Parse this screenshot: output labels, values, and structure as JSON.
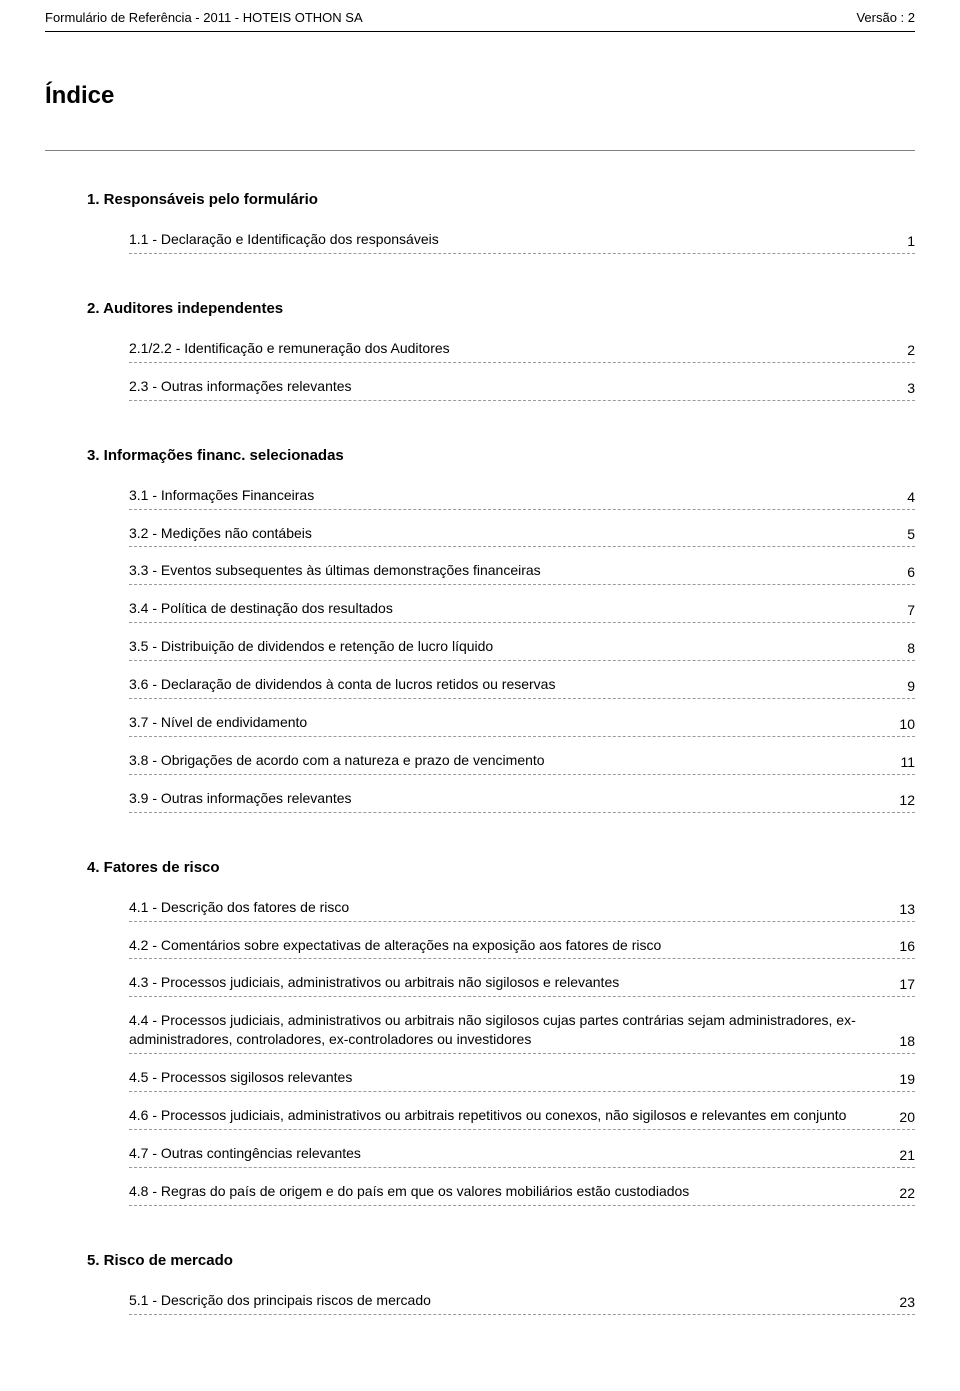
{
  "header": {
    "left": "Formulário de Referência - 2011 - HOTEIS OTHON SA",
    "right": "Versão : 2"
  },
  "title": "Índice",
  "sections": [
    {
      "heading": "1. Responsáveis pelo formulário",
      "items": [
        {
          "label": "1.1 - Declaração e Identificação dos responsáveis",
          "page": "1"
        }
      ]
    },
    {
      "heading": "2. Auditores independentes",
      "items": [
        {
          "label": "2.1/2.2 - Identificação e remuneração dos Auditores",
          "page": "2"
        },
        {
          "label": "2.3 - Outras informações relevantes",
          "page": "3"
        }
      ]
    },
    {
      "heading": "3. Informações financ. selecionadas",
      "items": [
        {
          "label": "3.1 - Informações Financeiras",
          "page": "4"
        },
        {
          "label": "3.2 - Medições não contábeis",
          "page": "5"
        },
        {
          "label": "3.3 - Eventos subsequentes às últimas demonstrações financeiras",
          "page": "6"
        },
        {
          "label": "3.4 - Política de destinação dos resultados",
          "page": "7"
        },
        {
          "label": "3.5 - Distribuição de dividendos e retenção de lucro líquido",
          "page": "8"
        },
        {
          "label": "3.6 - Declaração de dividendos à conta de lucros retidos ou reservas",
          "page": "9"
        },
        {
          "label": "3.7 - Nível de endividamento",
          "page": "10"
        },
        {
          "label": "3.8 - Obrigações de acordo com a natureza e prazo de vencimento",
          "page": "11"
        },
        {
          "label": "3.9 - Outras informações relevantes",
          "page": "12"
        }
      ]
    },
    {
      "heading": "4. Fatores de risco",
      "items": [
        {
          "label": "4.1 - Descrição dos fatores de risco",
          "page": "13"
        },
        {
          "label": "4.2 - Comentários sobre expectativas de alterações na exposição aos fatores de risco",
          "page": "16"
        },
        {
          "label": "4.3 - Processos judiciais, administrativos ou arbitrais não sigilosos e relevantes",
          "page": "17"
        },
        {
          "label": "4.4 - Processos judiciais, administrativos ou arbitrais não sigilosos cujas partes contrárias sejam administradores, ex-administradores, controladores, ex-controladores ou investidores",
          "page": "18"
        },
        {
          "label": "4.5 - Processos sigilosos relevantes",
          "page": "19"
        },
        {
          "label": "4.6 - Processos judiciais, administrativos ou arbitrais repetitivos ou conexos, não sigilosos e relevantes em conjunto",
          "page": "20"
        },
        {
          "label": "4.7 - Outras contingências relevantes",
          "page": "21"
        },
        {
          "label": "4.8 - Regras do país de origem e  do país em que os valores mobiliários estão custodiados",
          "page": "22"
        }
      ]
    },
    {
      "heading": "5. Risco de mercado",
      "items": [
        {
          "label": "5.1 - Descrição dos principais riscos de mercado",
          "page": "23"
        }
      ]
    }
  ]
}
